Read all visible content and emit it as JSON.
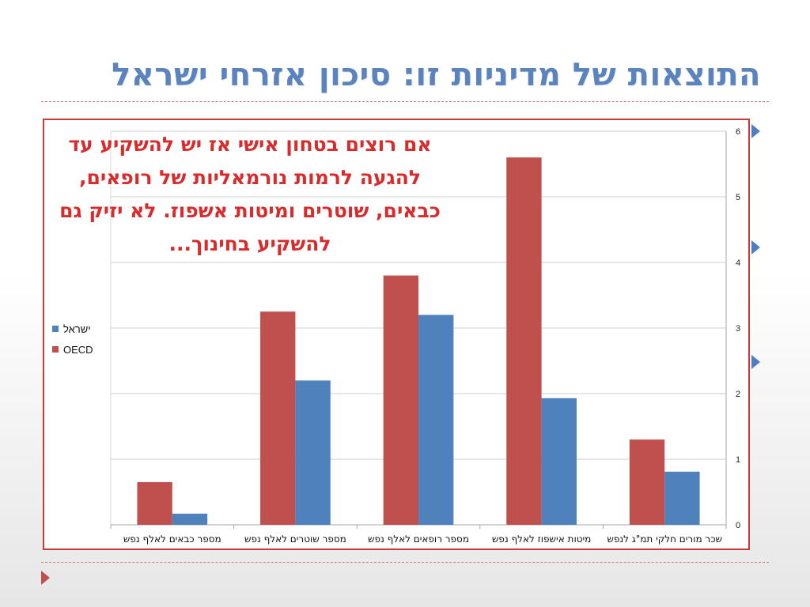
{
  "slide": {
    "title": "התוצאות של מדיניות זו: סיכון אזרחי ישראל",
    "callout": "אם רוצים בטחון אישי אז יש להשקיע עד להגעה לרמות נורמאליות של רופאים, כבאים, שוטרים ומיטות אשפוז. לא יזיק גם להשקיע בחינוך...",
    "colors": {
      "title": "#5b83bd",
      "frame": "#c63a3a",
      "callout": "#d92b2b",
      "arrow": "#4f7ec0",
      "bottom_arrow": "#c0504d"
    }
  },
  "chart_data": {
    "type": "bar",
    "categories": [
      "מספר כבאים לאלף נפש",
      "מספר שוטרים לאלף נפש",
      "מספר רופאים לאלף נפש",
      "מיטות אישפוז לאלף נפש",
      "שכר מורים חלקי תמ\"ג לנפש"
    ],
    "series": [
      {
        "name": "OECD",
        "color": "#c0504d",
        "values": [
          0.65,
          3.25,
          3.8,
          5.6,
          1.3
        ]
      },
      {
        "name": "ישראל",
        "color": "#4f81bd",
        "values": [
          0.17,
          2.2,
          3.2,
          1.93,
          0.81
        ]
      }
    ],
    "ylim": [
      0,
      6
    ],
    "yticks": [
      "0",
      "1",
      "2",
      "3",
      "4",
      "5",
      "6"
    ],
    "y_axis_side": "right",
    "grid": true,
    "legend": {
      "position": "left",
      "order": [
        "ישראל",
        "OECD"
      ]
    }
  }
}
